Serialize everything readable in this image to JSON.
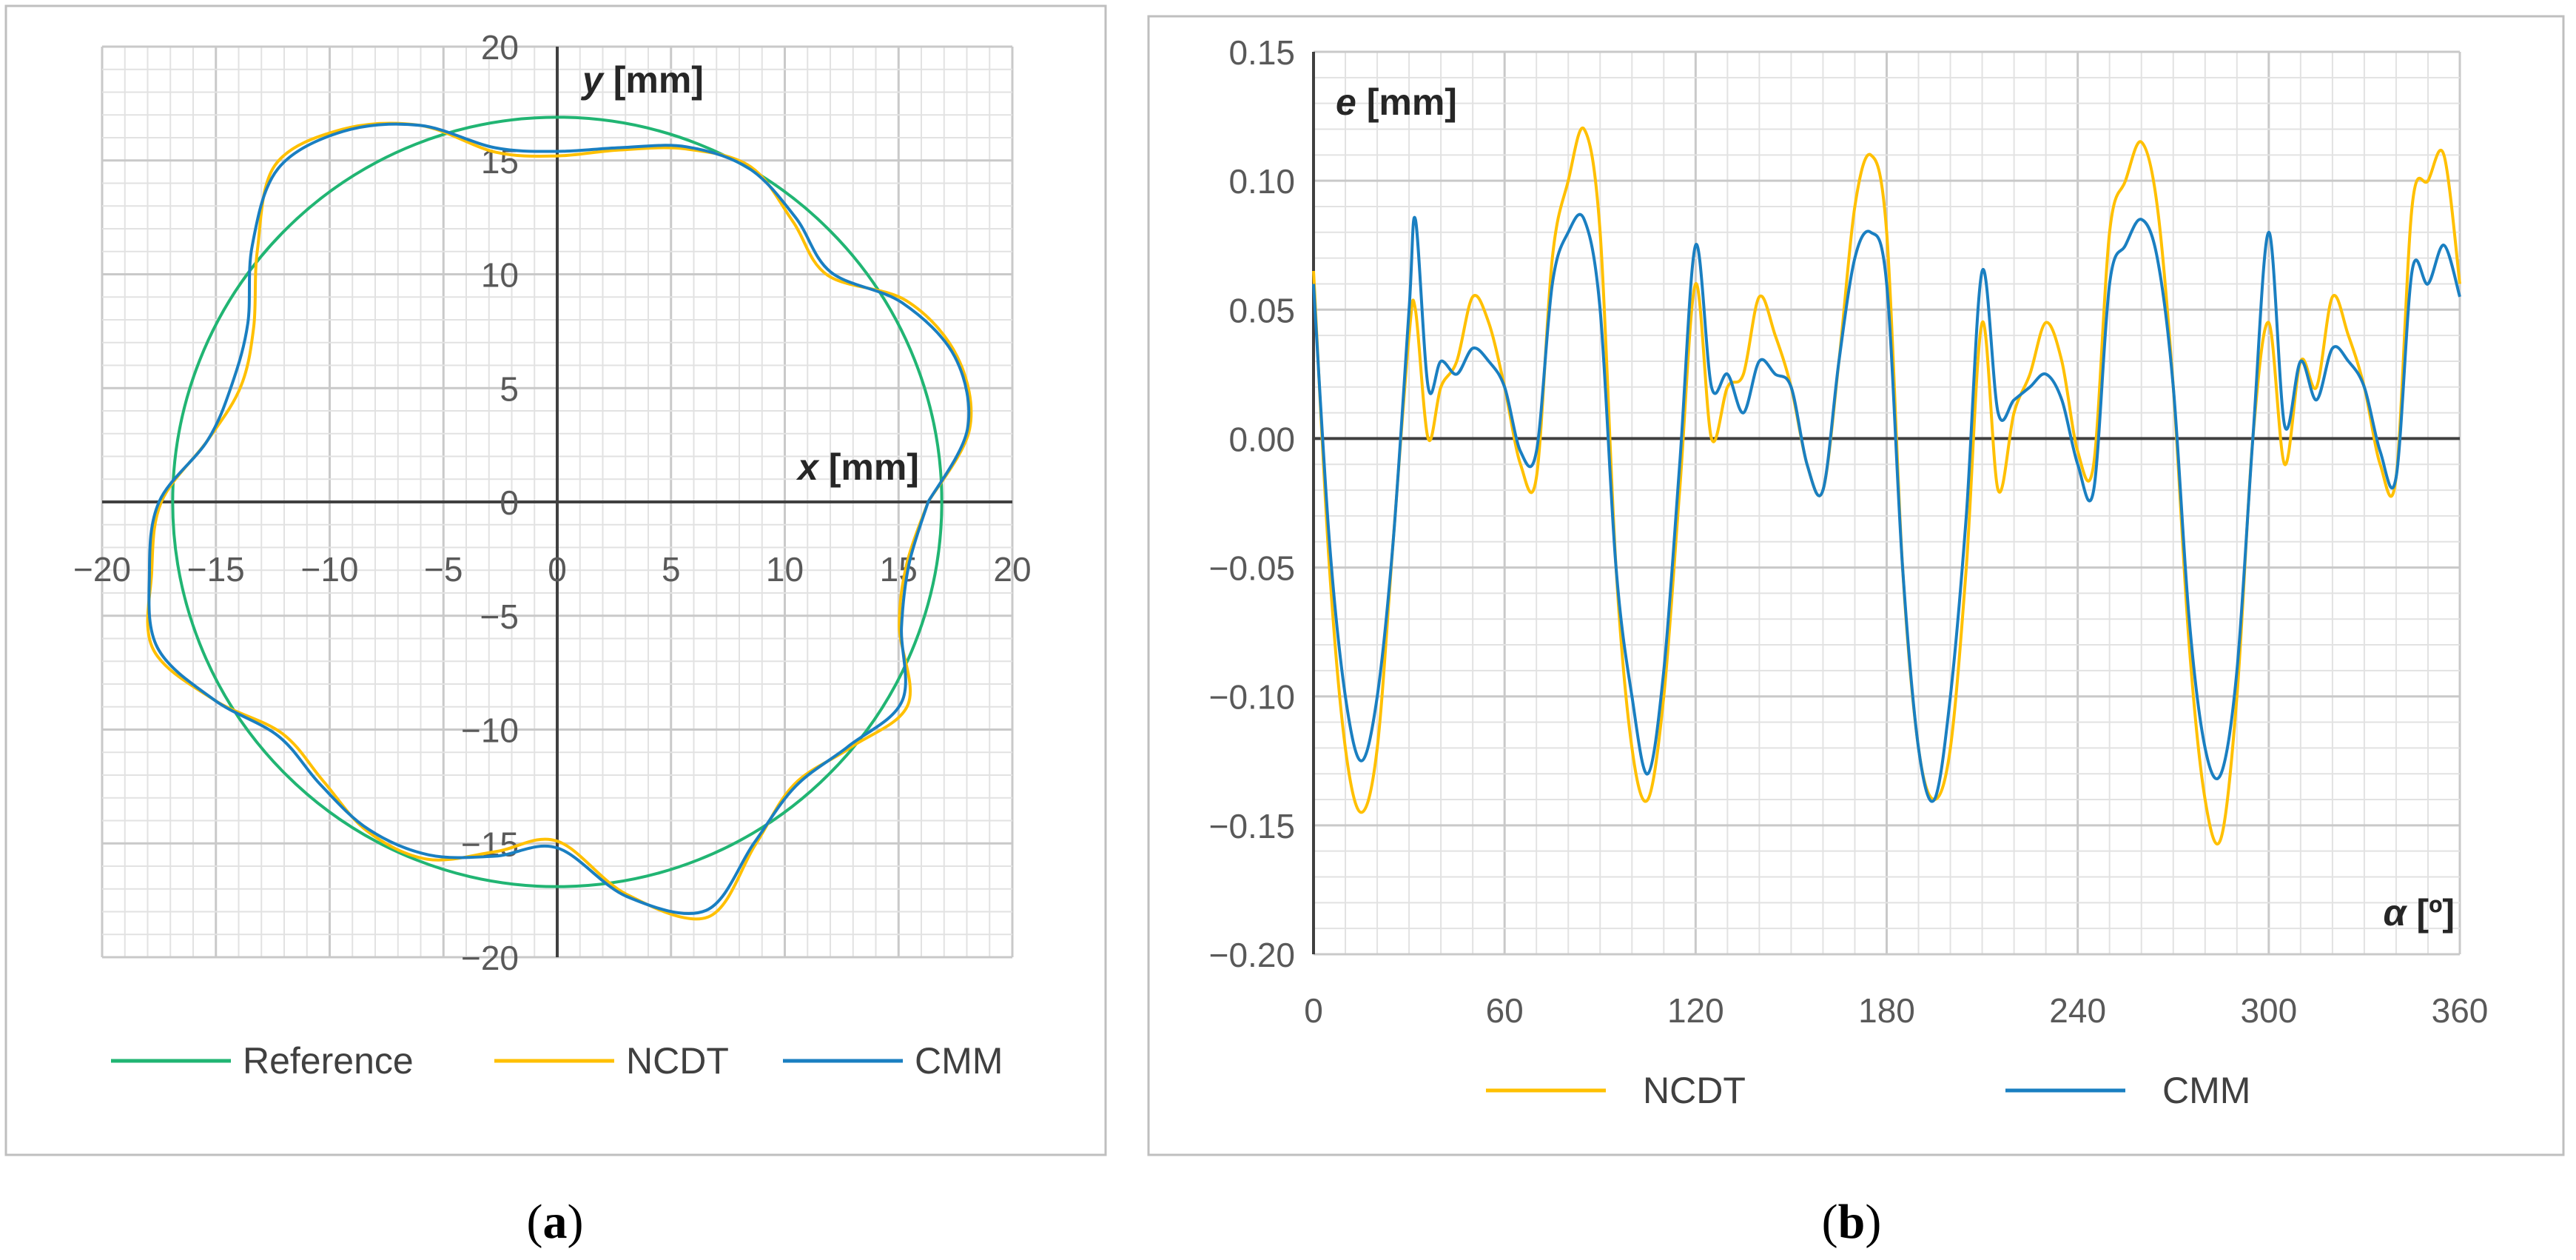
{
  "colors": {
    "reference": "#21b573",
    "ncdt": "#ffc000",
    "cmm": "#1a7fc1",
    "axis": "#404040",
    "grid_major": "#c9c9c9",
    "grid_minor": "#e2e2e2"
  },
  "chart_data": [
    {
      "id": "a",
      "type": "line",
      "subtype": "polar-profile",
      "caption": {
        "open": "(",
        "letter": "a",
        "close": ")"
      },
      "xlabel": {
        "var": "x",
        "unit": " [mm]"
      },
      "ylabel": {
        "var": "y",
        "unit": " [mm]"
      },
      "xlim": [
        -20,
        20
      ],
      "ylim": [
        -20,
        20
      ],
      "xticks": [
        "−20",
        "−15",
        "−10",
        "−5",
        "0",
        "5",
        "10",
        "15",
        "20"
      ],
      "yticks": [
        "20",
        "15",
        "10",
        "5",
        "0",
        "−5",
        "−10",
        "−15",
        "−20"
      ],
      "grid": {
        "major": 5,
        "minor": 1
      },
      "legend_position": "bottom",
      "legend": [
        "Reference",
        "NCDT",
        "CMM"
      ],
      "reference_circle": {
        "center": [
          0.0,
          0.0
        ],
        "radius": 16.9
      },
      "profile_angles_deg": [
        0,
        10,
        20,
        30,
        40,
        50,
        60,
        70,
        80,
        90,
        100,
        110,
        120,
        130,
        140,
        150,
        160,
        170,
        180,
        190,
        200,
        210,
        220,
        230,
        240,
        250,
        260,
        270,
        280,
        290,
        300,
        310,
        320,
        330,
        340,
        350,
        360
      ],
      "series": [
        {
          "name": "NCDT",
          "radius_mm": [
            16.3,
            18.4,
            18.7,
            17.7,
            15.5,
            16.1,
            17.0,
            16.5,
            15.7,
            15.2,
            15.6,
            17.6,
            18.9,
            19.3,
            17.2,
            15.4,
            14.8,
            15.6,
            17.4,
            18.1,
            18.9,
            17.4,
            15.8,
            16.0,
            16.7,
            16.7,
            15.6,
            14.9,
            17.5,
            19.4,
            17.4,
            16.2,
            16.8,
            17.8,
            16.0,
            15.6,
            16.3
          ]
        },
        {
          "name": "CMM",
          "radius_mm": [
            16.3,
            18.3,
            18.6,
            17.5,
            15.7,
            16.3,
            16.9,
            16.6,
            15.8,
            15.4,
            15.8,
            17.6,
            18.8,
            19.1,
            17.5,
            15.7,
            15.2,
            15.6,
            17.5,
            18.2,
            18.7,
            17.4,
            16.0,
            16.2,
            16.6,
            16.5,
            15.8,
            15.2,
            17.6,
            19.1,
            17.3,
            16.3,
            16.7,
            17.5,
            16.1,
            15.7,
            16.3
          ]
        }
      ]
    },
    {
      "id": "b",
      "type": "line",
      "caption": {
        "open": "(",
        "letter": "b",
        "close": ")"
      },
      "xlabel": {
        "var": "α",
        "unit": " [º]"
      },
      "ylabel": {
        "var": "e",
        "unit": " [mm]"
      },
      "xlim": [
        0,
        360
      ],
      "ylim": [
        -0.2,
        0.15
      ],
      "xticks": [
        "0",
        "60",
        "120",
        "180",
        "240",
        "300",
        "360"
      ],
      "yticks": [
        "0.15",
        "0.10",
        "0.05",
        "0.00",
        "−0.05",
        "−0.10",
        "−0.15",
        "−0.20"
      ],
      "grid": {
        "major_x": 60,
        "minor_x": 10,
        "major_y": 0.05,
        "minor_y": 0.01
      },
      "legend_position": "bottom",
      "legend": [
        "NCDT",
        "CMM"
      ],
      "x": [
        0,
        5,
        10,
        15,
        20,
        25,
        30,
        32,
        36,
        40,
        45,
        50,
        55,
        60,
        65,
        70,
        75,
        80,
        85,
        90,
        95,
        100,
        105,
        110,
        115,
        120,
        125,
        130,
        135,
        140,
        145,
        150,
        155,
        160,
        165,
        170,
        175,
        180,
        185,
        190,
        195,
        200,
        205,
        210,
        215,
        220,
        225,
        230,
        235,
        240,
        245,
        250,
        255,
        260,
        265,
        270,
        275,
        280,
        285,
        290,
        295,
        300,
        305,
        310,
        315,
        320,
        325,
        330,
        335,
        340,
        345,
        350,
        355,
        360
      ],
      "series": [
        {
          "name": "NCDT",
          "values": [
            0.065,
            -0.05,
            -0.12,
            -0.145,
            -0.12,
            -0.04,
            0.04,
            0.05,
            0.0,
            0.02,
            0.03,
            0.055,
            0.045,
            0.02,
            -0.01,
            -0.015,
            0.07,
            0.1,
            0.12,
            0.08,
            -0.05,
            -0.12,
            -0.14,
            -0.1,
            -0.02,
            0.06,
            0.0,
            0.02,
            0.025,
            0.055,
            0.04,
            0.02,
            -0.01,
            -0.02,
            0.03,
            0.09,
            0.11,
            0.08,
            -0.05,
            -0.12,
            -0.14,
            -0.12,
            -0.05,
            0.045,
            -0.02,
            0.01,
            0.025,
            0.045,
            0.03,
            -0.005,
            -0.01,
            0.08,
            0.1,
            0.115,
            0.09,
            0.02,
            -0.08,
            -0.14,
            -0.155,
            -0.1,
            0.0,
            0.045,
            -0.01,
            0.03,
            0.02,
            0.055,
            0.04,
            0.02,
            -0.01,
            -0.015,
            0.09,
            0.1,
            0.11,
            0.06
          ]
        },
        {
          "name": "CMM",
          "values": [
            0.06,
            -0.04,
            -0.1,
            -0.125,
            -0.1,
            -0.04,
            0.05,
            0.085,
            0.02,
            0.03,
            0.025,
            0.035,
            0.03,
            0.02,
            -0.005,
            -0.005,
            0.06,
            0.08,
            0.085,
            0.05,
            -0.05,
            -0.1,
            -0.13,
            -0.09,
            -0.01,
            0.075,
            0.02,
            0.025,
            0.01,
            0.03,
            0.025,
            0.02,
            -0.01,
            -0.02,
            0.03,
            0.07,
            0.08,
            0.06,
            -0.05,
            -0.12,
            -0.14,
            -0.1,
            -0.03,
            0.065,
            0.01,
            0.015,
            0.02,
            0.025,
            0.015,
            -0.01,
            -0.02,
            0.06,
            0.075,
            0.085,
            0.07,
            0.02,
            -0.07,
            -0.12,
            -0.13,
            -0.09,
            0.0,
            0.08,
            0.005,
            0.03,
            0.015,
            0.035,
            0.03,
            0.02,
            -0.005,
            -0.015,
            0.065,
            0.06,
            0.075,
            0.055
          ]
        }
      ]
    }
  ]
}
